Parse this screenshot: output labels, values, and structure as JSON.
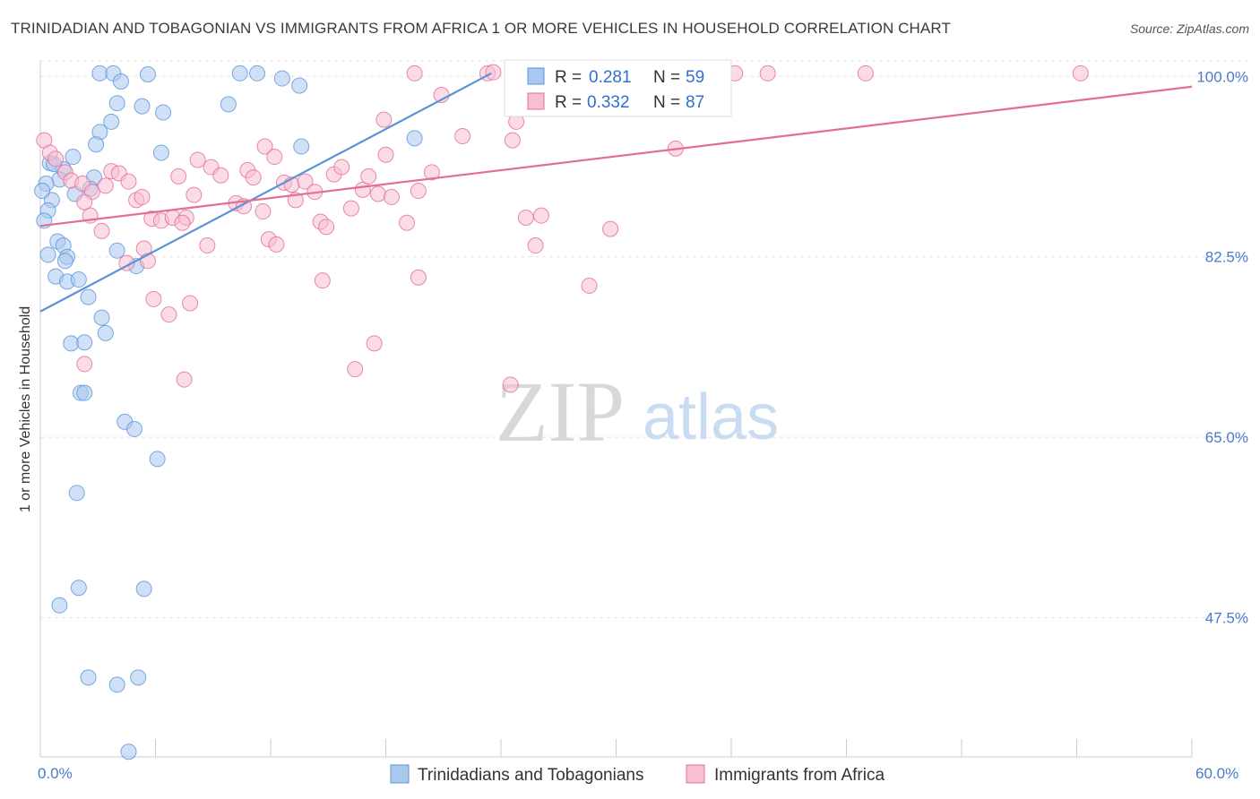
{
  "title": "TRINIDADIAN AND TOBAGONIAN VS IMMIGRANTS FROM AFRICA 1 OR MORE VEHICLES IN HOUSEHOLD CORRELATION CHART",
  "source": "Source: ZipAtlas.com",
  "watermark": {
    "zip": "ZIP",
    "atlas": "atlas"
  },
  "legend": {
    "r_label": "R =",
    "n_label": "N =",
    "rows": [
      {
        "r": "0.281",
        "n": "59",
        "color": "#7fb0e8"
      },
      {
        "r": "0.332",
        "n": "87",
        "color": "#f4a7bf"
      }
    ]
  },
  "chart_data": {
    "type": "scatter",
    "title": "TRINIDADIAN AND TOBAGONIAN VS IMMIGRANTS FROM AFRICA 1 OR MORE VEHICLES IN HOUSEHOLD CORRELATION CHART",
    "xlabel": "",
    "ylabel": "1 or more Vehicles in Household",
    "xlim": [
      0,
      60
    ],
    "ylim": [
      34,
      101.5
    ],
    "x_tick_labels": [
      "0.0%",
      "60.0%"
    ],
    "y_ticks": [
      47.5,
      65.0,
      82.5,
      100.0
    ],
    "y_tick_labels": [
      "47.5%",
      "65.0%",
      "82.5%",
      "100.0%"
    ],
    "grid": true,
    "legend_placement": "top-center",
    "series": [
      {
        "name": "Trinidadians and Tobagonians",
        "color": "#5b93d9",
        "fill": "#aac9f0",
        "trend": {
          "x": [
            0,
            23.5
          ],
          "y": [
            77.2,
            100.3
          ]
        },
        "points": [
          [
            3.1,
            100.3
          ],
          [
            3.8,
            100.3
          ],
          [
            4.2,
            99.5
          ],
          [
            5.6,
            100.2
          ],
          [
            10.4,
            100.3
          ],
          [
            11.3,
            100.3
          ],
          [
            12.6,
            99.8
          ],
          [
            13.5,
            99.1
          ],
          [
            4.0,
            97.4
          ],
          [
            5.3,
            97.1
          ],
          [
            9.8,
            97.3
          ],
          [
            6.4,
            96.5
          ],
          [
            3.7,
            95.6
          ],
          [
            3.1,
            94.6
          ],
          [
            2.9,
            93.4
          ],
          [
            13.6,
            93.2
          ],
          [
            19.5,
            94.0
          ],
          [
            1.7,
            92.2
          ],
          [
            6.3,
            92.6
          ],
          [
            0.5,
            91.6
          ],
          [
            1.2,
            91.0
          ],
          [
            1.0,
            90.0
          ],
          [
            2.8,
            90.2
          ],
          [
            0.3,
            89.6
          ],
          [
            1.8,
            88.6
          ],
          [
            2.6,
            89.1
          ],
          [
            0.6,
            88.0
          ],
          [
            0.4,
            87.0
          ],
          [
            0.2,
            86.0
          ],
          [
            0.9,
            84.0
          ],
          [
            1.2,
            83.6
          ],
          [
            0.4,
            82.7
          ],
          [
            1.4,
            82.5
          ],
          [
            1.3,
            82.1
          ],
          [
            4.0,
            83.1
          ],
          [
            5.0,
            81.6
          ],
          [
            0.8,
            80.6
          ],
          [
            1.4,
            80.1
          ],
          [
            2.0,
            80.3
          ],
          [
            2.5,
            78.6
          ],
          [
            3.2,
            76.6
          ],
          [
            3.4,
            75.1
          ],
          [
            1.6,
            74.1
          ],
          [
            2.3,
            74.2
          ],
          [
            2.1,
            69.3
          ],
          [
            2.3,
            69.3
          ],
          [
            4.4,
            66.5
          ],
          [
            4.9,
            65.8
          ],
          [
            6.1,
            62.9
          ],
          [
            1.9,
            59.6
          ],
          [
            1.0,
            48.7
          ],
          [
            2.0,
            50.4
          ],
          [
            5.4,
            50.3
          ],
          [
            2.5,
            41.7
          ],
          [
            4.0,
            41.0
          ],
          [
            5.1,
            41.7
          ],
          [
            4.6,
            34.5
          ],
          [
            0.1,
            88.9
          ],
          [
            0.7,
            91.5
          ]
        ]
      },
      {
        "name": "Immigrants from Africa",
        "color": "#e36c98",
        "fill": "#f7bfd1",
        "trend": {
          "x": [
            0,
            60
          ],
          "y": [
            85.5,
            99.0
          ]
        },
        "points": [
          [
            0.2,
            93.8
          ],
          [
            0.5,
            92.6
          ],
          [
            0.8,
            92.0
          ],
          [
            1.3,
            90.7
          ],
          [
            1.6,
            89.9
          ],
          [
            2.2,
            89.6
          ],
          [
            2.7,
            88.8
          ],
          [
            3.4,
            89.4
          ],
          [
            3.7,
            90.8
          ],
          [
            4.1,
            90.6
          ],
          [
            4.6,
            89.8
          ],
          [
            5.0,
            88.0
          ],
          [
            5.3,
            88.3
          ],
          [
            2.3,
            87.8
          ],
          [
            2.6,
            86.5
          ],
          [
            3.2,
            85.0
          ],
          [
            5.8,
            86.2
          ],
          [
            6.3,
            86.0
          ],
          [
            6.9,
            86.3
          ],
          [
            7.6,
            86.3
          ],
          [
            7.4,
            85.8
          ],
          [
            8.0,
            88.5
          ],
          [
            7.2,
            90.3
          ],
          [
            8.2,
            91.9
          ],
          [
            8.9,
            91.2
          ],
          [
            9.4,
            90.4
          ],
          [
            10.2,
            87.7
          ],
          [
            10.6,
            87.4
          ],
          [
            10.8,
            90.9
          ],
          [
            11.6,
            86.9
          ],
          [
            11.9,
            84.2
          ],
          [
            12.3,
            83.7
          ],
          [
            11.7,
            93.2
          ],
          [
            12.2,
            92.2
          ],
          [
            12.7,
            89.7
          ],
          [
            13.1,
            89.5
          ],
          [
            13.3,
            88.0
          ],
          [
            13.8,
            89.8
          ],
          [
            14.3,
            88.8
          ],
          [
            14.6,
            85.9
          ],
          [
            14.9,
            85.4
          ],
          [
            15.3,
            90.5
          ],
          [
            15.7,
            91.2
          ],
          [
            16.2,
            87.2
          ],
          [
            16.8,
            89.0
          ],
          [
            17.1,
            90.3
          ],
          [
            17.6,
            88.6
          ],
          [
            18.0,
            92.4
          ],
          [
            18.3,
            88.3
          ],
          [
            17.9,
            95.8
          ],
          [
            19.1,
            85.8
          ],
          [
            19.7,
            88.9
          ],
          [
            20.4,
            90.7
          ],
          [
            19.5,
            100.3
          ],
          [
            20.9,
            98.2
          ],
          [
            22.0,
            94.2
          ],
          [
            23.3,
            100.3
          ],
          [
            24.6,
            93.8
          ],
          [
            24.8,
            95.6
          ],
          [
            23.6,
            100.4
          ],
          [
            25.3,
            86.3
          ],
          [
            25.8,
            83.6
          ],
          [
            26.1,
            86.5
          ],
          [
            28.6,
            79.7
          ],
          [
            29.0,
            100.4
          ],
          [
            29.7,
            85.2
          ],
          [
            33.1,
            93.0
          ],
          [
            34.7,
            100.3
          ],
          [
            36.2,
            100.3
          ],
          [
            37.9,
            100.3
          ],
          [
            43.0,
            100.3
          ],
          [
            54.2,
            100.3
          ],
          [
            8.7,
            83.6
          ],
          [
            7.8,
            78.0
          ],
          [
            6.7,
            76.9
          ],
          [
            5.4,
            83.3
          ],
          [
            5.6,
            82.1
          ],
          [
            4.5,
            81.9
          ],
          [
            5.9,
            78.4
          ],
          [
            2.3,
            72.1
          ],
          [
            7.5,
            70.6
          ],
          [
            16.4,
            71.6
          ],
          [
            17.4,
            74.1
          ],
          [
            24.5,
            70.1
          ],
          [
            14.7,
            80.2
          ],
          [
            19.7,
            80.5
          ],
          [
            11.1,
            90.2
          ]
        ]
      }
    ]
  }
}
